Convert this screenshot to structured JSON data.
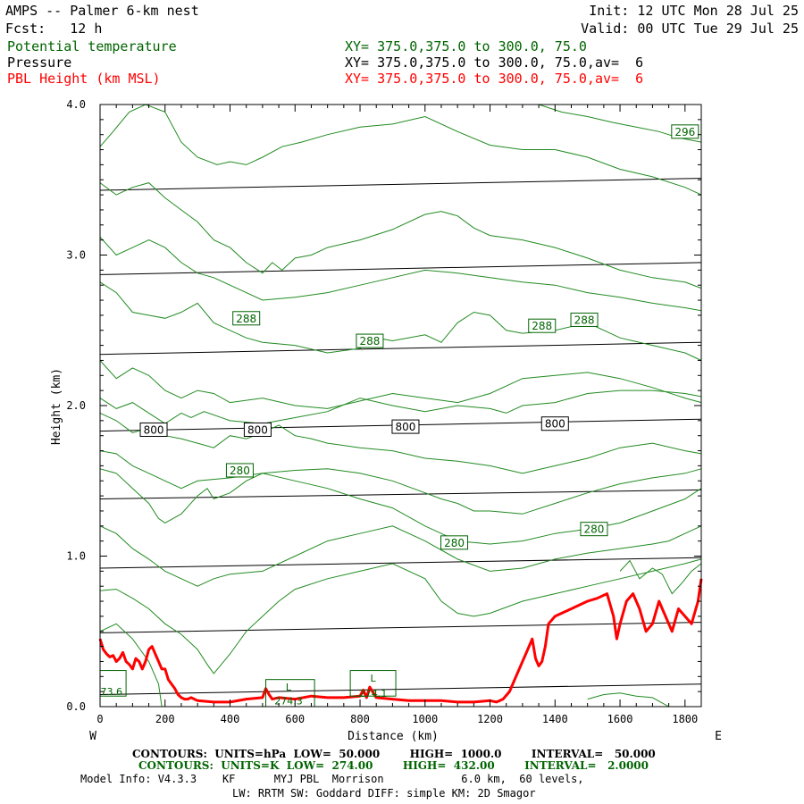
{
  "header": {
    "model": "AMPS -- Palmer 6-km nest",
    "fcst": "Fcst:   12 h",
    "init": "Init: 12 UTC Mon 28 Jul 25",
    "valid": "Valid: 00 UTC Tue 29 Jul 25"
  },
  "fields": [
    {
      "name": "Potential temperature",
      "xy": "XY= 375.0,375.0 to 300.0, 75.0",
      "color": "#006400"
    },
    {
      "name": "Pressure",
      "xy": "XY= 375.0,375.0 to 300.0, 75.0,av=  6",
      "color": "#000000"
    },
    {
      "name": "PBL Height (km MSL)",
      "xy": "XY= 375.0,375.0 to 300.0, 75.0,av=  6",
      "color": "#ff0000"
    }
  ],
  "footer": {
    "pressure_contours": "CONTOURS:  UNITS=hPa  LOW=  50.000        HIGH=  1000.0        INTERVAL=   50.000",
    "theta_contours": "CONTOURS:  UNITS=K  LOW=  274.00        HIGH=  432.00        INTERVAL=   2.0000",
    "model_info_1": "Model Info: V4.3.3    KF      MYJ PBL  Morrison            6.0 km,  60 levels,",
    "model_info_2": "LW: RRTM SW: Goddard DIFF: simple KM: 2D Smagor"
  },
  "chart_data": {
    "type": "line",
    "xlabel": "Distance (km)",
    "ylabel": "Height (km)",
    "xlim": [
      0,
      1850
    ],
    "ylim": [
      0,
      4.0
    ],
    "x_ticks": [
      "0",
      "200",
      "400",
      "600",
      "800",
      "1000",
      "1200",
      "1400",
      "1600",
      "1800"
    ],
    "y_ticks": [
      "0.0",
      "1.0",
      "2.0",
      "3.0",
      "4.0"
    ],
    "x_left_label": "W",
    "x_right_label": "E",
    "colors": {
      "pressure": "#000000",
      "theta": "#228b22",
      "pbl": "#ff0000"
    },
    "pressure_lines": [
      {
        "x": [
          0,
          1850
        ],
        "y": [
          0.08,
          0.15
        ]
      },
      {
        "x": [
          0,
          1850
        ],
        "y": [
          0.49,
          0.56
        ]
      },
      {
        "x": [
          0,
          1850
        ],
        "y": [
          0.92,
          0.99
        ]
      },
      {
        "x": [
          0,
          1850
        ],
        "y": [
          1.38,
          1.44
        ]
      },
      {
        "x": [
          0,
          1850
        ],
        "y": [
          1.83,
          1.91
        ]
      },
      {
        "x": [
          0,
          1850
        ],
        "y": [
          2.34,
          2.42
        ]
      },
      {
        "x": [
          0,
          1850
        ],
        "y": [
          2.87,
          2.95
        ]
      },
      {
        "x": [
          0,
          1850
        ],
        "y": [
          3.43,
          3.51
        ]
      }
    ],
    "pressure_labels": [
      {
        "text": "800",
        "x": 165,
        "y": 1.84
      },
      {
        "text": "800",
        "x": 485,
        "y": 1.84
      },
      {
        "text": "800",
        "x": 940,
        "y": 1.86
      },
      {
        "text": "800",
        "x": 1400,
        "y": 1.88
      }
    ],
    "theta_lines": [
      {
        "x": [
          0,
          40,
          90,
          140,
          200,
          250,
          300,
          360,
          400,
          450,
          500,
          560,
          620,
          700,
          800,
          900,
          1000,
          1100,
          1200,
          1300,
          1400,
          1500,
          1600,
          1700,
          1800,
          1850
        ],
        "y": [
          3.72,
          3.82,
          3.95,
          4.0,
          3.95,
          3.75,
          3.65,
          3.6,
          3.62,
          3.6,
          3.65,
          3.72,
          3.75,
          3.8,
          3.85,
          3.87,
          3.92,
          3.82,
          3.73,
          3.7,
          3.7,
          3.65,
          3.57,
          3.52,
          3.45,
          3.4
        ]
      },
      {
        "x": [
          1350,
          1420,
          1500,
          1580,
          1650,
          1720,
          1780,
          1850
        ],
        "y": [
          4.0,
          3.95,
          3.92,
          3.88,
          3.85,
          3.82,
          3.78,
          3.75
        ]
      },
      {
        "x": [
          0,
          50,
          100,
          150,
          200,
          250,
          300,
          350,
          400,
          450,
          500,
          530,
          560,
          600,
          650,
          700,
          800,
          900,
          1000,
          1050,
          1100,
          1150,
          1200,
          1300,
          1400,
          1500,
          1600,
          1700,
          1800,
          1850
        ],
        "y": [
          3.48,
          3.4,
          3.45,
          3.48,
          3.38,
          3.3,
          3.22,
          3.1,
          3.05,
          2.95,
          2.88,
          2.95,
          2.9,
          2.98,
          3.0,
          3.05,
          3.1,
          3.17,
          3.27,
          3.29,
          3.26,
          3.18,
          3.13,
          3.1,
          3.05,
          2.98,
          2.9,
          2.85,
          2.82,
          2.78
        ]
      },
      {
        "x": [
          0,
          50,
          100,
          150,
          200,
          250,
          300,
          350,
          400,
          500,
          600,
          700,
          800,
          900,
          1000,
          1100,
          1200,
          1300,
          1400,
          1500,
          1600,
          1700,
          1800,
          1850
        ],
        "y": [
          3.12,
          3.0,
          3.05,
          3.1,
          3.05,
          2.95,
          2.88,
          2.85,
          2.8,
          2.7,
          2.72,
          2.75,
          2.8,
          2.85,
          2.9,
          2.88,
          2.85,
          2.82,
          2.8,
          2.75,
          2.72,
          2.68,
          2.65,
          2.63
        ]
      },
      {
        "x": [
          0,
          50,
          100,
          150,
          200,
          250,
          300,
          350,
          400,
          450,
          500,
          600,
          700,
          800,
          850,
          900,
          1000,
          1050,
          1100,
          1150,
          1200,
          1250,
          1300,
          1400,
          1500,
          1600,
          1700,
          1800,
          1850
        ],
        "y": [
          2.82,
          2.75,
          2.62,
          2.6,
          2.58,
          2.62,
          2.68,
          2.55,
          2.5,
          2.45,
          2.42,
          2.4,
          2.35,
          2.38,
          2.45,
          2.43,
          2.47,
          2.42,
          2.55,
          2.62,
          2.6,
          2.5,
          2.48,
          2.5,
          2.55,
          2.45,
          2.4,
          2.35,
          2.3
        ]
      },
      {
        "x": [
          0,
          50,
          100,
          150,
          200,
          250,
          300,
          350,
          400,
          500,
          600,
          700,
          800,
          900,
          1000,
          1100,
          1200,
          1300,
          1400,
          1500,
          1600,
          1700,
          1800,
          1850
        ],
        "y": [
          2.3,
          2.18,
          2.25,
          2.2,
          2.1,
          2.05,
          2.1,
          2.08,
          2.02,
          2.05,
          2.0,
          1.98,
          2.03,
          2.08,
          2.05,
          2.02,
          2.08,
          2.18,
          2.2,
          2.22,
          2.18,
          2.12,
          2.05,
          2.02
        ]
      },
      {
        "x": [
          0,
          50,
          100,
          150,
          200,
          250,
          280,
          320,
          400,
          500,
          600,
          700,
          800,
          900,
          1000,
          1100,
          1200,
          1250,
          1300,
          1400,
          1500,
          1600,
          1700,
          1800,
          1850
        ],
        "y": [
          2.05,
          1.98,
          2.02,
          1.95,
          1.88,
          1.95,
          1.92,
          1.96,
          1.9,
          1.88,
          1.92,
          1.96,
          2.05,
          2.0,
          1.96,
          2.0,
          1.98,
          1.95,
          2.0,
          2.02,
          2.08,
          2.1,
          2.1,
          2.08,
          2.06
        ]
      },
      {
        "x": [
          0,
          50,
          100,
          150,
          200,
          250,
          300,
          350,
          400,
          450,
          500,
          550,
          600,
          650,
          700,
          800,
          900,
          1000,
          1100,
          1200,
          1300,
          1400,
          1500,
          1600,
          1700,
          1800,
          1850
        ],
        "y": [
          1.95,
          1.9,
          1.82,
          1.85,
          1.8,
          1.78,
          1.75,
          1.72,
          1.8,
          1.78,
          1.82,
          1.87,
          1.8,
          1.78,
          1.75,
          1.72,
          1.7,
          1.65,
          1.63,
          1.6,
          1.55,
          1.6,
          1.65,
          1.72,
          1.75,
          1.7,
          1.68
        ]
      },
      {
        "x": [
          0,
          50,
          100,
          150,
          200,
          250,
          300,
          400,
          500,
          600,
          700,
          800,
          900,
          1000,
          1050,
          1100,
          1150,
          1200,
          1300,
          1400,
          1500,
          1600,
          1700,
          1800,
          1850
        ],
        "y": [
          1.7,
          1.68,
          1.6,
          1.55,
          1.5,
          1.45,
          1.5,
          1.52,
          1.55,
          1.57,
          1.58,
          1.55,
          1.5,
          1.42,
          1.38,
          1.35,
          1.3,
          1.3,
          1.28,
          1.35,
          1.42,
          1.48,
          1.52,
          1.55,
          1.58
        ]
      },
      {
        "x": [
          0,
          50,
          100,
          150,
          180,
          200,
          250,
          300,
          330,
          350,
          400,
          450,
          500,
          600,
          700,
          800,
          900,
          1000,
          1100,
          1200,
          1300,
          1400,
          1500,
          1600,
          1700,
          1800,
          1850
        ],
        "y": [
          1.58,
          1.55,
          1.45,
          1.35,
          1.25,
          1.22,
          1.28,
          1.4,
          1.45,
          1.38,
          1.42,
          1.5,
          1.55,
          1.5,
          1.45,
          1.38,
          1.32,
          1.2,
          1.1,
          1.08,
          1.1,
          1.15,
          1.18,
          1.22,
          1.3,
          1.38,
          1.45
        ]
      },
      {
        "x": [
          0,
          50,
          100,
          150,
          200,
          250,
          300,
          350,
          400,
          500,
          600,
          700,
          800,
          900,
          1000,
          1100,
          1200,
          1300,
          1400,
          1500,
          1600,
          1700,
          1750,
          1800,
          1850
        ],
        "y": [
          1.2,
          1.15,
          1.05,
          0.98,
          0.9,
          0.85,
          0.8,
          0.85,
          0.88,
          0.9,
          1.0,
          1.1,
          1.15,
          1.2,
          1.1,
          0.98,
          0.9,
          0.92,
          0.98,
          1.02,
          1.05,
          1.08,
          1.1,
          1.15,
          1.2
        ]
      },
      {
        "x": [
          0,
          50,
          100,
          150,
          200,
          250,
          300,
          330,
          350,
          400,
          450,
          500,
          550,
          600,
          700,
          800,
          900,
          1000,
          1050,
          1100,
          1150,
          1200,
          1300,
          1400,
          1500,
          1600,
          1700,
          1800,
          1850
        ],
        "y": [
          0.77,
          0.78,
          0.72,
          0.65,
          0.55,
          0.48,
          0.38,
          0.28,
          0.22,
          0.35,
          0.5,
          0.6,
          0.7,
          0.78,
          0.85,
          0.9,
          0.95,
          0.85,
          0.7,
          0.62,
          0.6,
          0.62,
          0.7,
          0.75,
          0.8,
          0.85,
          0.9,
          0.95,
          0.98
        ]
      },
      {
        "x": [
          1600,
          1630,
          1660,
          1700,
          1730,
          1760,
          1790,
          1820,
          1850
        ],
        "y": [
          0.9,
          0.97,
          0.85,
          0.92,
          0.88,
          0.75,
          0.82,
          0.9,
          0.95
        ]
      },
      {
        "x": [
          0,
          50,
          100,
          150,
          180,
          190
        ],
        "y": [
          0.5,
          0.55,
          0.45,
          0.3,
          0.15,
          0.0
        ]
      },
      {
        "x": [
          1500,
          1550,
          1600,
          1650,
          1700,
          1750
        ],
        "y": [
          0.05,
          0.08,
          0.09,
          0.07,
          0.06,
          0.0
        ]
      }
    ],
    "theta_labels": [
      {
        "text": "296",
        "x": 1800,
        "y": 3.82
      },
      {
        "text": "288",
        "x": 450,
        "y": 2.58
      },
      {
        "text": "288",
        "x": 830,
        "y": 2.43
      },
      {
        "text": "288",
        "x": 1360,
        "y": 2.53
      },
      {
        "text": "288",
        "x": 1490,
        "y": 2.57
      },
      {
        "text": "280",
        "x": 430,
        "y": 1.57
      },
      {
        "text": "280",
        "x": 1090,
        "y": 1.09
      },
      {
        "text": "280",
        "x": 1520,
        "y": 1.18
      }
    ],
    "low_labels": [
      {
        "text": "L",
        "x": 580,
        "y": 0.13
      },
      {
        "text": "274.3",
        "x": 580,
        "y": 0.04
      },
      {
        "text": "L",
        "x": 840,
        "y": 0.19
      },
      {
        "text": "274.1",
        "x": 840,
        "y": 0.09
      },
      {
        "text": "73.6",
        "x": 35,
        "y": 0.1
      }
    ],
    "pbl": {
      "x": [
        0,
        10,
        20,
        30,
        40,
        50,
        60,
        70,
        80,
        90,
        100,
        110,
        120,
        130,
        140,
        150,
        160,
        170,
        180,
        190,
        200,
        210,
        220,
        230,
        240,
        250,
        260,
        270,
        280,
        290,
        300,
        350,
        400,
        450,
        500,
        510,
        520,
        530,
        550,
        600,
        650,
        700,
        750,
        800,
        810,
        820,
        830,
        850,
        900,
        950,
        1000,
        1050,
        1100,
        1150,
        1200,
        1220,
        1240,
        1260,
        1280,
        1300,
        1310,
        1320,
        1330,
        1340,
        1350,
        1360,
        1370,
        1380,
        1400,
        1420,
        1450,
        1480,
        1500,
        1530,
        1560,
        1580,
        1590,
        1600,
        1620,
        1640,
        1660,
        1680,
        1700,
        1720,
        1740,
        1760,
        1780,
        1800,
        1820,
        1840,
        1850
      ],
      "y": [
        0.45,
        0.38,
        0.35,
        0.33,
        0.34,
        0.3,
        0.32,
        0.36,
        0.3,
        0.28,
        0.25,
        0.32,
        0.3,
        0.25,
        0.3,
        0.38,
        0.4,
        0.35,
        0.3,
        0.25,
        0.25,
        0.18,
        0.15,
        0.12,
        0.08,
        0.06,
        0.05,
        0.05,
        0.06,
        0.05,
        0.04,
        0.03,
        0.03,
        0.05,
        0.06,
        0.12,
        0.08,
        0.05,
        0.06,
        0.05,
        0.07,
        0.06,
        0.06,
        0.07,
        0.11,
        0.06,
        0.13,
        0.06,
        0.05,
        0.04,
        0.04,
        0.04,
        0.03,
        0.03,
        0.04,
        0.03,
        0.05,
        0.1,
        0.2,
        0.3,
        0.35,
        0.4,
        0.45,
        0.32,
        0.27,
        0.3,
        0.4,
        0.55,
        0.6,
        0.62,
        0.65,
        0.68,
        0.7,
        0.72,
        0.75,
        0.6,
        0.45,
        0.55,
        0.7,
        0.75,
        0.65,
        0.5,
        0.55,
        0.7,
        0.6,
        0.5,
        0.65,
        0.6,
        0.55,
        0.7,
        0.85
      ]
    }
  }
}
